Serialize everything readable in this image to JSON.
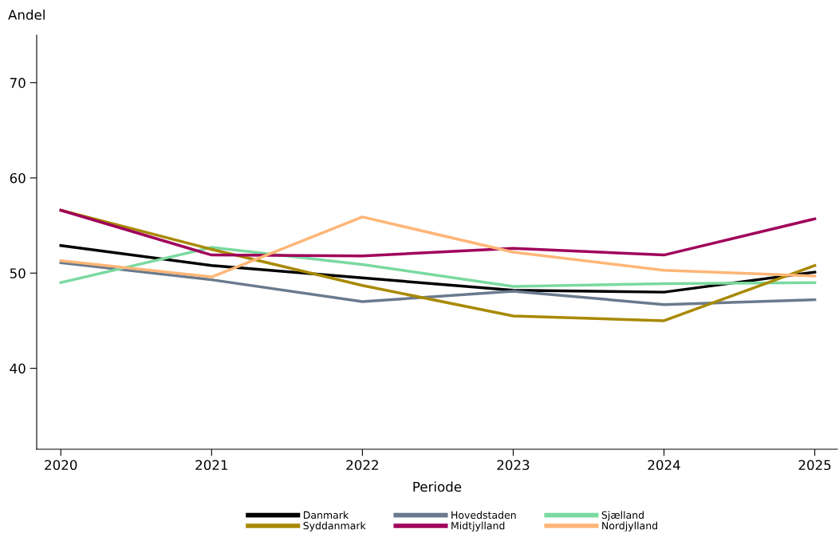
{
  "chart_data": {
    "type": "line",
    "xlabel": "Periode",
    "ylabel": "Andel",
    "x": [
      2020,
      2021,
      2022,
      2023,
      2024,
      2025
    ],
    "xlim": [
      2019.84,
      2025.15
    ],
    "xticks": [
      2020,
      2021,
      2022,
      2023,
      2024,
      2025
    ],
    "ylim": [
      31.5,
      75
    ],
    "yticks": [
      40,
      50,
      60,
      70
    ],
    "grid": false,
    "legend": "bottom",
    "line_style": "solid",
    "series": [
      {
        "name": "Danmark",
        "color": "#000000",
        "values": [
          52.9,
          50.8,
          49.5,
          48.2,
          48.0,
          50.1
        ]
      },
      {
        "name": "Hovedstaden",
        "color": "#6a7a8e",
        "values": [
          51.1,
          49.3,
          47.0,
          48.1,
          46.7,
          47.2
        ]
      },
      {
        "name": "Sjælland",
        "color": "#7ad9a0",
        "values": [
          49.0,
          52.7,
          50.9,
          48.6,
          48.9,
          49.0
        ]
      },
      {
        "name": "Syddanmark",
        "color": "#a88900",
        "values": [
          56.6,
          52.5,
          48.7,
          45.5,
          45.0,
          50.8
        ]
      },
      {
        "name": "Midtjylland",
        "color": "#a0005a",
        "values": [
          56.6,
          51.9,
          51.8,
          52.6,
          51.9,
          55.7
        ]
      },
      {
        "name": "Nordjylland",
        "color": "#ffb677",
        "values": [
          51.3,
          49.6,
          55.9,
          52.2,
          50.3,
          49.7
        ]
      }
    ]
  }
}
